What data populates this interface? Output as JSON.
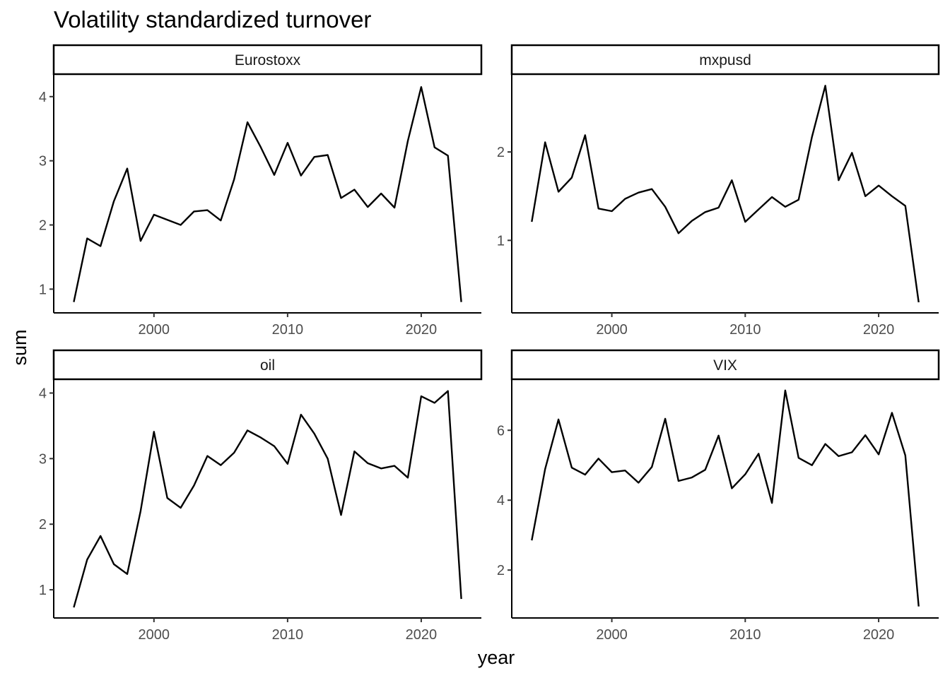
{
  "chart_data": {
    "type": "line",
    "title": "Volatility standardized turnover",
    "xlabel": "year",
    "ylabel": "sum",
    "x_ticks": [
      2000,
      2010,
      2020
    ],
    "x": [
      1994,
      1995,
      1996,
      1997,
      1998,
      1999,
      2000,
      2001,
      2002,
      2003,
      2004,
      2005,
      2006,
      2007,
      2008,
      2009,
      2010,
      2011,
      2012,
      2013,
      2014,
      2015,
      2016,
      2017,
      2018,
      2019,
      2020,
      2021,
      2022,
      2023
    ],
    "xlim": [
      1992.5,
      2024.5
    ],
    "panels": [
      {
        "name": "Eurostoxx",
        "ylim": [
          0.63,
          4.35
        ],
        "y_ticks": [
          1,
          2,
          3,
          4
        ],
        "values": [
          0.8,
          1.79,
          1.67,
          2.37,
          2.88,
          1.75,
          2.16,
          2.08,
          2.0,
          2.21,
          2.23,
          2.07,
          2.71,
          3.6,
          3.21,
          2.78,
          3.28,
          2.77,
          3.06,
          3.09,
          2.42,
          2.55,
          2.28,
          2.49,
          2.27,
          3.31,
          4.15,
          3.21,
          3.08,
          0.8
        ]
      },
      {
        "name": "mxpusd",
        "ylim": [
          0.18,
          2.88
        ],
        "y_ticks": [
          1,
          2
        ],
        "values": [
          1.21,
          2.11,
          1.55,
          1.71,
          2.19,
          1.36,
          1.33,
          1.47,
          1.54,
          1.58,
          1.38,
          1.08,
          1.22,
          1.32,
          1.37,
          1.68,
          1.21,
          1.35,
          1.49,
          1.38,
          1.46,
          2.17,
          2.75,
          1.68,
          1.99,
          1.5,
          1.62,
          1.5,
          1.39,
          0.3
        ]
      },
      {
        "name": "oil",
        "ylim": [
          0.57,
          4.21
        ],
        "y_ticks": [
          1,
          2,
          3,
          4
        ],
        "values": [
          0.73,
          1.46,
          1.82,
          1.39,
          1.24,
          2.2,
          3.41,
          2.4,
          2.25,
          2.59,
          3.04,
          2.9,
          3.09,
          3.43,
          3.32,
          3.19,
          2.92,
          3.67,
          3.38,
          3.0,
          2.14,
          3.11,
          2.93,
          2.85,
          2.89,
          2.71,
          3.95,
          3.85,
          4.03,
          0.86
        ]
      },
      {
        "name": "VIX",
        "ylim": [
          0.63,
          7.46
        ],
        "y_ticks": [
          2,
          4,
          6
        ],
        "values": [
          2.85,
          4.89,
          6.31,
          4.93,
          4.73,
          5.19,
          4.8,
          4.85,
          4.5,
          4.95,
          6.33,
          4.55,
          4.65,
          4.87,
          5.85,
          4.34,
          4.74,
          5.33,
          3.92,
          7.14,
          5.21,
          5.0,
          5.61,
          5.26,
          5.37,
          5.86,
          5.31,
          6.5,
          5.28,
          0.96
        ]
      }
    ]
  }
}
